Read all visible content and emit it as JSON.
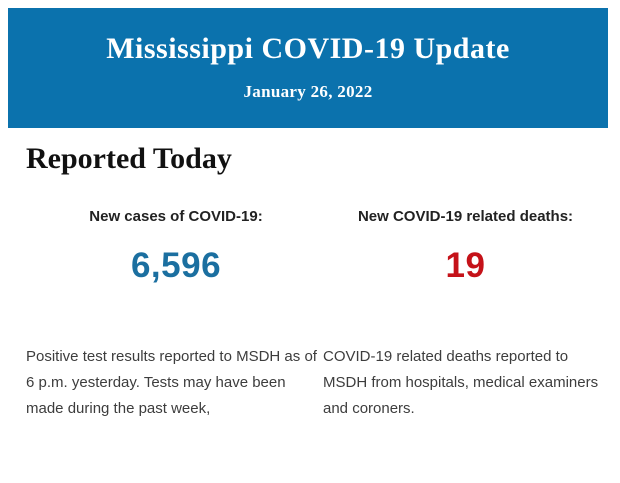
{
  "colors": {
    "header_background": "#0b72ad",
    "header_text": "#ffffff",
    "cases_value": "#1b6fa0",
    "deaths_value": "#c51219",
    "heading_text": "#111111",
    "label_text": "#222222",
    "body_text": "#3d3d3d",
    "page_background": "#ffffff"
  },
  "header": {
    "title": "Mississippi COVID-19 Update",
    "date": "January 26, 2022"
  },
  "section": {
    "heading": "Reported Today"
  },
  "stats": [
    {
      "label": "New cases of COVID-19:",
      "value": "6,596",
      "description": "Positive test results reported to MSDH as of 6 p.m. yesterday. Tests may have been made during the past week,"
    },
    {
      "label": "New COVID-19 related deaths:",
      "value": "19",
      "description": "COVID-19 related deaths reported to MSDH from hospitals, medical examiners and coroners."
    }
  ]
}
